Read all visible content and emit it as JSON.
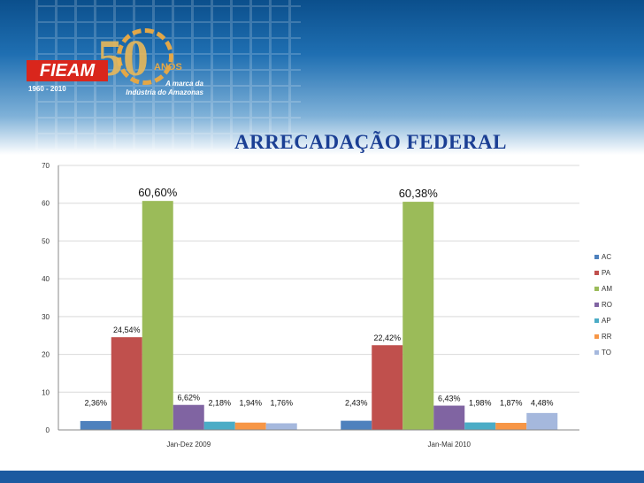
{
  "slide": {
    "title": "ARRECADAÇÃO FEDERAL",
    "logo": {
      "brand": "FIEAM",
      "years": "1960 - 2010",
      "fifty": "50",
      "anos": "ANOS",
      "tagline_line1": "A marca da",
      "tagline_line2": "Indústria do Amazonas"
    }
  },
  "colors": {
    "AC": "#4e81bd",
    "PA": "#c0504d",
    "AM": "#9bbb59",
    "RO": "#8064a2",
    "AP": "#4bacc6",
    "RR": "#f79646",
    "TO": "#a5b8dd",
    "title": "#1b3f94"
  },
  "chart_data": {
    "type": "bar",
    "categories": [
      "Jan-Dez 2009",
      "Jan-Mai 2010"
    ],
    "series": [
      {
        "name": "AC",
        "values": [
          2.36,
          2.43
        ],
        "labels": [
          "2,36%",
          "2,43%"
        ]
      },
      {
        "name": "PA",
        "values": [
          24.54,
          22.42
        ],
        "labels": [
          "24,54%",
          "22,42%"
        ]
      },
      {
        "name": "AM",
        "values": [
          60.6,
          60.38
        ],
        "labels": [
          "60,60%",
          "60,38%"
        ]
      },
      {
        "name": "RO",
        "values": [
          6.62,
          6.43
        ],
        "labels": [
          "6,62%",
          "6,43%"
        ]
      },
      {
        "name": "AP",
        "values": [
          2.18,
          1.98
        ],
        "labels": [
          "2,18%",
          "1,98%"
        ]
      },
      {
        "name": "RR",
        "values": [
          1.94,
          1.87
        ],
        "labels": [
          "1,94%",
          "1,87%"
        ]
      },
      {
        "name": "TO",
        "values": [
          1.76,
          4.48
        ],
        "labels": [
          "1,76%",
          "4,48%"
        ]
      }
    ],
    "yticks": [
      "0",
      "10",
      "20",
      "30",
      "40",
      "50",
      "60",
      "70"
    ],
    "ylim": [
      0,
      70
    ],
    "grid": true,
    "legend": "right"
  }
}
